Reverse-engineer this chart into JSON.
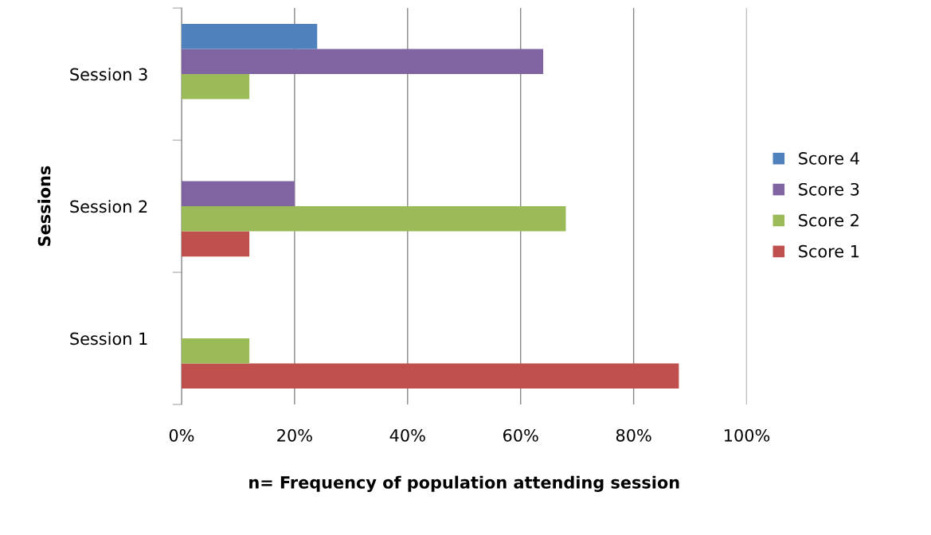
{
  "chart_data": {
    "type": "bar",
    "orientation": "horizontal",
    "categories": [
      "Session 3",
      "Session 2",
      "Session 1"
    ],
    "series": [
      {
        "name": "Score 1",
        "color": "#c0504d",
        "values": [
          null,
          12,
          88
        ]
      },
      {
        "name": "Score 2",
        "color": "#9bbb59",
        "values": [
          12,
          68,
          12
        ]
      },
      {
        "name": "Score 3",
        "color": "#8064a2",
        "values": [
          64,
          20,
          null
        ]
      },
      {
        "name": "Score 4",
        "color": "#4f81bd",
        "values": [
          24,
          null,
          null
        ]
      }
    ],
    "xlim": [
      0,
      100
    ],
    "xticks": [
      {
        "value": 0,
        "label": "0%"
      },
      {
        "value": 20,
        "label": "20%"
      },
      {
        "value": 40,
        "label": "40%"
      },
      {
        "value": 60,
        "label": "60%"
      },
      {
        "value": 80,
        "label": "80%"
      },
      {
        "value": 100,
        "label": "100%"
      }
    ],
    "xlabel": "n= Frequency of population attending session",
    "ylabel": "Sessions",
    "grid": "x",
    "legend": "right"
  }
}
